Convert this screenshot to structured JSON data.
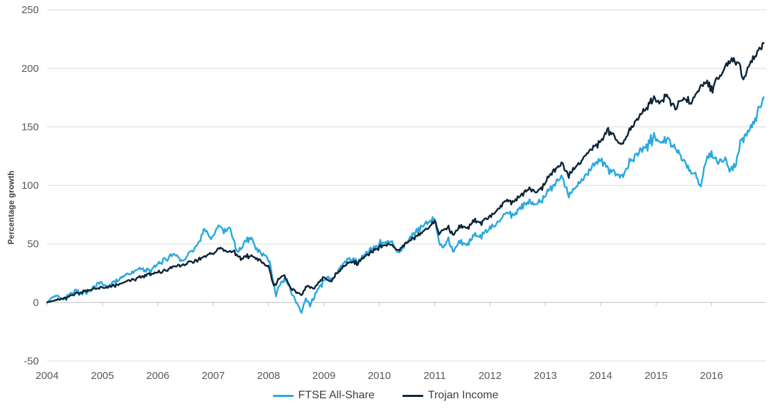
{
  "page": {
    "background": "#ffffff"
  },
  "chart_data": {
    "type": "line",
    "title": "",
    "ylabel": "Percentage growth",
    "xlabel": "",
    "ylim": [
      -50,
      250
    ],
    "yticks": [
      -50,
      0,
      50,
      100,
      150,
      200,
      250
    ],
    "xticks": [
      2004,
      2005,
      2006,
      2007,
      2008,
      2009,
      2010,
      2011,
      2012,
      2013,
      2014,
      2015,
      2016
    ],
    "x_range": [
      2004,
      2016.95
    ],
    "grid": "horizontal",
    "legend_position": "bottom-center",
    "gridline_color": "#d9d9d9",
    "axis_color": "#bfbfbf",
    "tick_label_color": "#595959",
    "legend_text_color": "#404040",
    "series": [
      {
        "name": "FTSE All-Share",
        "color": "#29a9e0",
        "anchors": [
          [
            2004.0,
            0
          ],
          [
            2004.08,
            4
          ],
          [
            2004.17,
            6
          ],
          [
            2004.3,
            3
          ],
          [
            2004.42,
            8
          ],
          [
            2004.5,
            10
          ],
          [
            2004.63,
            7
          ],
          [
            2004.8,
            11
          ],
          [
            2004.95,
            17
          ],
          [
            2005.1,
            14
          ],
          [
            2005.3,
            20
          ],
          [
            2005.5,
            25
          ],
          [
            2005.7,
            29
          ],
          [
            2005.85,
            26
          ],
          [
            2006.0,
            32
          ],
          [
            2006.15,
            38
          ],
          [
            2006.3,
            41
          ],
          [
            2006.45,
            36
          ],
          [
            2006.6,
            44
          ],
          [
            2006.75,
            52
          ],
          [
            2006.85,
            63
          ],
          [
            2006.95,
            53
          ],
          [
            2007.1,
            66
          ],
          [
            2007.2,
            60
          ],
          [
            2007.3,
            64
          ],
          [
            2007.45,
            42
          ],
          [
            2007.55,
            50
          ],
          [
            2007.65,
            57
          ],
          [
            2007.8,
            44
          ],
          [
            2007.95,
            40
          ],
          [
            2008.05,
            28
          ],
          [
            2008.13,
            5
          ],
          [
            2008.2,
            16
          ],
          [
            2008.3,
            20
          ],
          [
            2008.4,
            10
          ],
          [
            2008.5,
            0
          ],
          [
            2008.6,
            -8
          ],
          [
            2008.67,
            3
          ],
          [
            2008.75,
            -2
          ],
          [
            2008.85,
            8
          ],
          [
            2008.95,
            14
          ],
          [
            2009.05,
            22
          ],
          [
            2009.15,
            19
          ],
          [
            2009.3,
            30
          ],
          [
            2009.45,
            37
          ],
          [
            2009.6,
            34
          ],
          [
            2009.75,
            42
          ],
          [
            2009.9,
            46
          ],
          [
            2010.05,
            49
          ],
          [
            2010.2,
            53
          ],
          [
            2010.33,
            42
          ],
          [
            2010.45,
            49
          ],
          [
            2010.6,
            57
          ],
          [
            2010.75,
            64
          ],
          [
            2010.9,
            69
          ],
          [
            2011.0,
            72
          ],
          [
            2011.08,
            52
          ],
          [
            2011.15,
            47
          ],
          [
            2011.25,
            55
          ],
          [
            2011.33,
            43
          ],
          [
            2011.45,
            54
          ],
          [
            2011.57,
            47
          ],
          [
            2011.72,
            59
          ],
          [
            2011.83,
            55
          ],
          [
            2012.0,
            64
          ],
          [
            2012.15,
            69
          ],
          [
            2012.3,
            78
          ],
          [
            2012.4,
            73
          ],
          [
            2012.55,
            82
          ],
          [
            2012.7,
            86
          ],
          [
            2012.85,
            83
          ],
          [
            2013.0,
            93
          ],
          [
            2013.15,
            100
          ],
          [
            2013.3,
            106
          ],
          [
            2013.42,
            91
          ],
          [
            2013.55,
            99
          ],
          [
            2013.7,
            107
          ],
          [
            2013.85,
            116
          ],
          [
            2014.0,
            121
          ],
          [
            2014.15,
            113
          ],
          [
            2014.35,
            106
          ],
          [
            2014.5,
            118
          ],
          [
            2014.65,
            126
          ],
          [
            2014.8,
            133
          ],
          [
            2014.95,
            143
          ],
          [
            2015.1,
            135
          ],
          [
            2015.22,
            142
          ],
          [
            2015.35,
            131
          ],
          [
            2015.5,
            122
          ],
          [
            2015.62,
            112
          ],
          [
            2015.72,
            108
          ],
          [
            2015.8,
            97
          ],
          [
            2015.88,
            118
          ],
          [
            2015.95,
            125
          ],
          [
            2016.02,
            127
          ],
          [
            2016.1,
            117
          ],
          [
            2016.2,
            124
          ],
          [
            2016.3,
            117
          ],
          [
            2016.42,
            116
          ],
          [
            2016.52,
            137
          ],
          [
            2016.62,
            143
          ],
          [
            2016.72,
            149
          ],
          [
            2016.82,
            160
          ],
          [
            2016.88,
            168
          ],
          [
            2016.95,
            173
          ]
        ]
      },
      {
        "name": "Trojan Income",
        "color": "#0f2537",
        "anchors": [
          [
            2004.0,
            0
          ],
          [
            2004.15,
            2
          ],
          [
            2004.3,
            4
          ],
          [
            2004.5,
            7
          ],
          [
            2004.7,
            10
          ],
          [
            2004.9,
            12
          ],
          [
            2005.1,
            13
          ],
          [
            2005.3,
            16
          ],
          [
            2005.5,
            19
          ],
          [
            2005.7,
            22
          ],
          [
            2005.9,
            24
          ],
          [
            2006.1,
            27
          ],
          [
            2006.3,
            31
          ],
          [
            2006.5,
            33
          ],
          [
            2006.7,
            36
          ],
          [
            2006.9,
            40
          ],
          [
            2007.0,
            42
          ],
          [
            2007.12,
            47
          ],
          [
            2007.25,
            43
          ],
          [
            2007.35,
            45
          ],
          [
            2007.5,
            37
          ],
          [
            2007.62,
            41
          ],
          [
            2007.75,
            38
          ],
          [
            2007.9,
            34
          ],
          [
            2008.0,
            30
          ],
          [
            2008.1,
            13
          ],
          [
            2008.18,
            20
          ],
          [
            2008.28,
            24
          ],
          [
            2008.4,
            12
          ],
          [
            2008.5,
            9
          ],
          [
            2008.6,
            7
          ],
          [
            2008.7,
            15
          ],
          [
            2008.8,
            12
          ],
          [
            2008.9,
            16
          ],
          [
            2009.0,
            21
          ],
          [
            2009.12,
            18
          ],
          [
            2009.3,
            28
          ],
          [
            2009.45,
            34
          ],
          [
            2009.6,
            33
          ],
          [
            2009.75,
            40
          ],
          [
            2009.9,
            44
          ],
          [
            2010.05,
            47
          ],
          [
            2010.2,
            50
          ],
          [
            2010.33,
            44
          ],
          [
            2010.45,
            50
          ],
          [
            2010.6,
            54
          ],
          [
            2010.75,
            59
          ],
          [
            2010.9,
            64
          ],
          [
            2011.0,
            70
          ],
          [
            2011.08,
            59
          ],
          [
            2011.15,
            62
          ],
          [
            2011.25,
            64
          ],
          [
            2011.33,
            58
          ],
          [
            2011.45,
            66
          ],
          [
            2011.57,
            62
          ],
          [
            2011.72,
            71
          ],
          [
            2011.83,
            68
          ],
          [
            2012.0,
            74
          ],
          [
            2012.15,
            80
          ],
          [
            2012.3,
            88
          ],
          [
            2012.4,
            85
          ],
          [
            2012.55,
            92
          ],
          [
            2012.7,
            97
          ],
          [
            2012.85,
            94
          ],
          [
            2013.0,
            103
          ],
          [
            2013.15,
            112
          ],
          [
            2013.3,
            118
          ],
          [
            2013.42,
            108
          ],
          [
            2013.55,
            116
          ],
          [
            2013.7,
            124
          ],
          [
            2013.85,
            132
          ],
          [
            2014.0,
            138
          ],
          [
            2014.15,
            148
          ],
          [
            2014.35,
            134
          ],
          [
            2014.5,
            146
          ],
          [
            2014.65,
            155
          ],
          [
            2014.8,
            165
          ],
          [
            2014.95,
            176
          ],
          [
            2015.08,
            169
          ],
          [
            2015.2,
            178
          ],
          [
            2015.35,
            166
          ],
          [
            2015.5,
            176
          ],
          [
            2015.62,
            170
          ],
          [
            2015.75,
            181
          ],
          [
            2015.9,
            188
          ],
          [
            2016.0,
            183
          ],
          [
            2016.1,
            190
          ],
          [
            2016.22,
            198
          ],
          [
            2016.33,
            210
          ],
          [
            2016.42,
            204
          ],
          [
            2016.5,
            207
          ],
          [
            2016.56,
            191
          ],
          [
            2016.65,
            200
          ],
          [
            2016.75,
            207
          ],
          [
            2016.85,
            214
          ],
          [
            2016.95,
            221
          ]
        ]
      }
    ]
  }
}
